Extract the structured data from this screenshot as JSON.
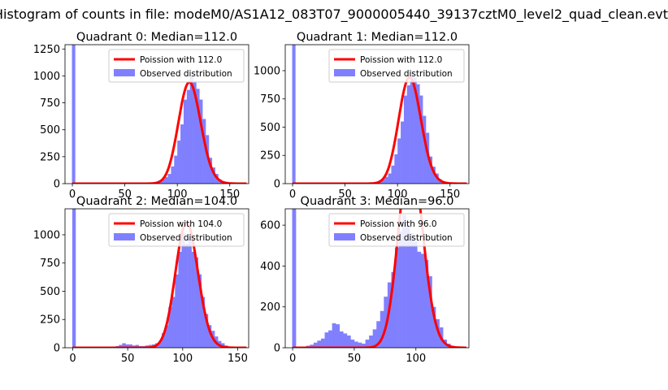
{
  "suptitle": "Histogram of counts in file: modeM0/AS1A12_083T07_9000005440_39137cztM0_level2_quad_clean.evt",
  "colors": {
    "histogram": "#8080ff",
    "poisson": "#ff0000",
    "legend_border": "#cccccc"
  },
  "chart_data": [
    {
      "type": "bar",
      "title": "Quadrant 0: Median=112.0",
      "xlabel": "",
      "ylabel": "",
      "xlim": [
        -7,
        168
      ],
      "ylim": [
        0,
        1290
      ],
      "xticks": [
        0,
        50,
        100,
        150
      ],
      "yticks": [
        0,
        250,
        500,
        750,
        1000,
        1250
      ],
      "legend_position": "top-right",
      "bin_width": 3.2,
      "series": [
        {
          "name": "Observed distribution",
          "type": "bar",
          "x": [
            -0.4,
            70,
            73,
            76,
            79,
            82,
            85,
            88,
            91,
            94,
            97,
            100,
            103,
            106,
            109,
            112,
            115,
            118,
            121,
            124,
            127,
            130,
            133,
            136,
            139,
            142,
            145,
            148,
            151,
            154
          ],
          "values": [
            1290,
            3,
            5,
            8,
            15,
            30,
            40,
            60,
            90,
            160,
            260,
            400,
            550,
            780,
            870,
            1000,
            940,
            880,
            780,
            600,
            450,
            240,
            150,
            90,
            40,
            20,
            10,
            5,
            3,
            2
          ]
        },
        {
          "name": "Poission with 112.0",
          "type": "poisson",
          "lambda": 112.0
        }
      ]
    },
    {
      "type": "bar",
      "title": "Quadrant 1: Median=112.0",
      "xlabel": "",
      "ylabel": "",
      "xlim": [
        -7,
        168
      ],
      "ylim": [
        0,
        1230
      ],
      "xticks": [
        0,
        50,
        100,
        150
      ],
      "yticks": [
        0,
        250,
        500,
        750,
        1000
      ],
      "legend_position": "top-right",
      "bin_width": 3.2,
      "series": [
        {
          "name": "Observed distribution",
          "type": "bar",
          "x": [
            -0.4,
            70,
            73,
            76,
            79,
            82,
            85,
            88,
            91,
            94,
            97,
            100,
            103,
            106,
            109,
            112,
            115,
            118,
            121,
            124,
            127,
            130,
            133,
            136,
            139,
            142,
            145,
            148,
            151,
            154
          ],
          "values": [
            1230,
            3,
            5,
            8,
            15,
            30,
            40,
            60,
            90,
            160,
            260,
            400,
            550,
            780,
            870,
            1000,
            940,
            880,
            780,
            600,
            450,
            240,
            150,
            90,
            40,
            20,
            10,
            5,
            3,
            2
          ]
        },
        {
          "name": "Poission with 112.0",
          "type": "poisson",
          "lambda": 112.0
        }
      ]
    },
    {
      "type": "bar",
      "title": "Quadrant 2: Median=104.0",
      "xlabel": "",
      "ylabel": "",
      "xlim": [
        -7,
        160
      ],
      "ylim": [
        0,
        1230
      ],
      "xticks": [
        0,
        50,
        100,
        150
      ],
      "yticks": [
        0,
        250,
        500,
        750,
        1000
      ],
      "legend_position": "top-right",
      "bin_width": 3.2,
      "series": [
        {
          "name": "Observed distribution",
          "type": "bar",
          "x": [
            -0.4,
            30,
            33,
            36,
            39,
            42,
            45,
            48,
            51,
            54,
            57,
            60,
            63,
            66,
            69,
            72,
            75,
            78,
            81,
            84,
            87,
            90,
            93,
            96,
            99,
            102,
            105,
            108,
            111,
            114,
            117,
            120,
            123,
            126,
            129,
            132,
            135,
            138,
            141,
            144
          ],
          "values": [
            1230,
            5,
            8,
            10,
            15,
            25,
            40,
            30,
            30,
            20,
            25,
            15,
            15,
            20,
            25,
            30,
            40,
            60,
            130,
            200,
            360,
            450,
            650,
            850,
            1020,
            920,
            980,
            850,
            800,
            650,
            450,
            300,
            200,
            150,
            100,
            60,
            40,
            20,
            10,
            5
          ]
        },
        {
          "name": "Poission with 104.0",
          "type": "poisson",
          "lambda": 104.0
        }
      ]
    },
    {
      "type": "bar",
      "title": "Quadrant 3: Median=96.0",
      "xlabel": "",
      "ylabel": "",
      "xlim": [
        -6,
        143
      ],
      "ylim": [
        0,
        680
      ],
      "xticks": [
        0,
        50,
        100
      ],
      "yticks": [
        0,
        200,
        400,
        600
      ],
      "legend_position": "top-right",
      "bin_width": 3.2,
      "series": [
        {
          "name": "Observed distribution",
          "type": "bar",
          "x": [
            -0.4,
            8,
            11,
            14,
            17,
            20,
            23,
            26,
            29,
            32,
            35,
            38,
            41,
            44,
            47,
            50,
            53,
            56,
            59,
            62,
            65,
            68,
            71,
            74,
            77,
            80,
            83,
            86,
            89,
            92,
            95,
            98,
            101,
            104,
            107,
            110,
            113,
            116,
            119,
            122,
            125,
            128
          ],
          "values": [
            680,
            5,
            10,
            15,
            25,
            35,
            45,
            75,
            85,
            120,
            115,
            80,
            70,
            60,
            40,
            30,
            25,
            20,
            40,
            60,
            90,
            130,
            180,
            250,
            320,
            370,
            490,
            570,
            650,
            600,
            560,
            520,
            470,
            460,
            430,
            350,
            200,
            140,
            100,
            40,
            20,
            10
          ]
        },
        {
          "name": "Poission with 96.0",
          "type": "poisson",
          "lambda": 96.0
        }
      ]
    }
  ]
}
